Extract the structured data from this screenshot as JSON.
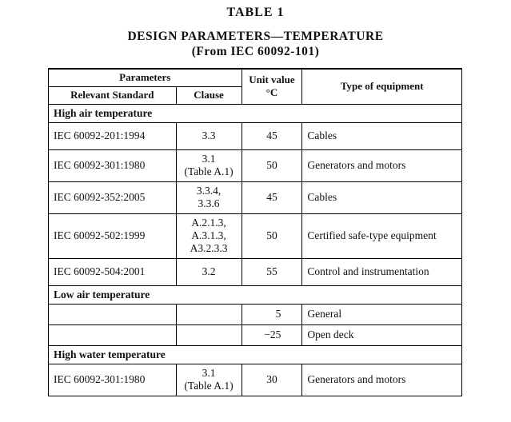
{
  "title": "TABLE   1",
  "subtitle": "DESIGN PARAMETERS—TEMPERATURE",
  "subtitle2": "(From IEC 60092-101)",
  "header": {
    "parameters": "Parameters",
    "relevant_standard": "Relevant Standard",
    "clause": "Clause",
    "unit_value_line1": "Unit value",
    "unit_value_line2": "°C",
    "type_of_equipment": "Type of equipment"
  },
  "sections": [
    {
      "title": "High air temperature",
      "rows": [
        {
          "standard": "IEC 60092-201:1994",
          "clause": [
            "3.3"
          ],
          "value": "45",
          "equipment": "Cables"
        },
        {
          "standard": "IEC 60092-301:1980",
          "clause": [
            "3.1",
            "(Table A.1)"
          ],
          "value": "50",
          "equipment": "Generators and motors"
        },
        {
          "standard": "IEC 60092-352:2005",
          "clause": [
            "3.3.4,",
            "3.3.6"
          ],
          "value": "45",
          "equipment": "Cables"
        },
        {
          "standard": "IEC 60092-502:1999",
          "clause": [
            "A.2.1.3,",
            "A.3.1.3,",
            "A3.2.3.3"
          ],
          "value": "50",
          "equipment": "Certified safe-type equipment"
        },
        {
          "standard": "IEC 60092-504:2001",
          "clause": [
            "3.2"
          ],
          "value": "55",
          "equipment": "Control and instrumentation"
        }
      ]
    },
    {
      "title": "Low air temperature",
      "rows": [
        {
          "standard": "",
          "clause": [
            ""
          ],
          "value": "5",
          "equipment": "General"
        },
        {
          "standard": "",
          "clause": [
            ""
          ],
          "value": "−25",
          "equipment": "Open deck"
        }
      ]
    },
    {
      "title": "High water temperature",
      "rows": [
        {
          "standard": "IEC 60092-301:1980",
          "clause": [
            "3.1",
            "(Table A.1)"
          ],
          "value": "30",
          "equipment": "Generators and motors"
        }
      ]
    }
  ]
}
